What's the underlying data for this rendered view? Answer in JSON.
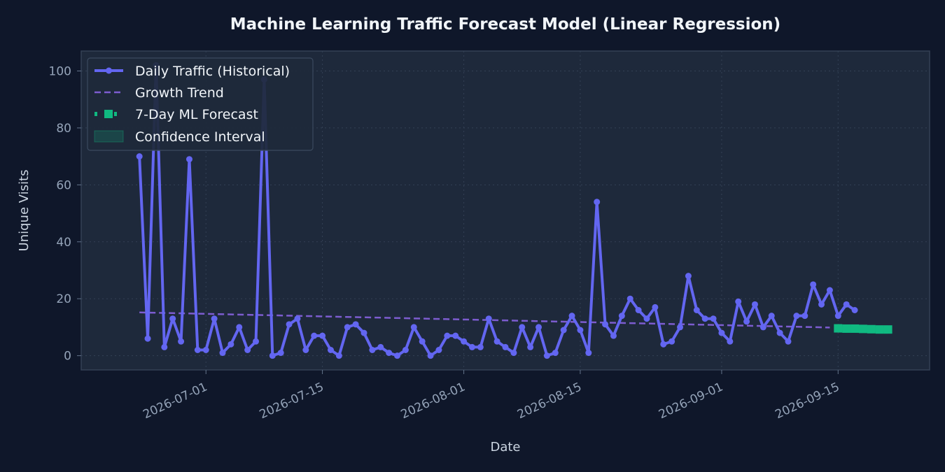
{
  "chart_data": {
    "type": "line",
    "title": "Machine Learning Traffic Forecast Model (Linear Regression)",
    "xlabel": "Date",
    "ylabel": "Unique Visits",
    "ylim": [
      -5,
      107
    ],
    "xlim": [
      "2026-06-16",
      "2026-09-26"
    ],
    "y_ticks": [
      0,
      20,
      40,
      60,
      80,
      100
    ],
    "x_ticks": [
      "2026-07-01",
      "2026-07-15",
      "2026-08-01",
      "2026-08-15",
      "2026-09-01",
      "2026-09-15"
    ],
    "grid": true,
    "legend_position": "top-left",
    "series": [
      {
        "name": "Daily Traffic (Historical)",
        "style": "line-markers",
        "color": "#6366f1",
        "start": "2026-06-23",
        "values": [
          70,
          6,
          102,
          3,
          13,
          5,
          69,
          2,
          2,
          13,
          1,
          4,
          10,
          2,
          5,
          97,
          0,
          1,
          11,
          13,
          2,
          7,
          7,
          2,
          0,
          10,
          11,
          8,
          2,
          3,
          1,
          0,
          2,
          10,
          5,
          0,
          2,
          7,
          7,
          5,
          3,
          3,
          13,
          5,
          3,
          1,
          10,
          3,
          10,
          0,
          1,
          9,
          14,
          9,
          1,
          54,
          11,
          7,
          14,
          20,
          16,
          13,
          17,
          4,
          5,
          10,
          28,
          16,
          13,
          13,
          8,
          5,
          19,
          12,
          18,
          10,
          14,
          8,
          5,
          14,
          14,
          25,
          18,
          23,
          14,
          18,
          16
        ]
      },
      {
        "name": "Growth Trend",
        "style": "dashed",
        "color": "#7c5ccf",
        "start": "2026-06-23",
        "end": "2026-09-14",
        "start_value": 15.2,
        "end_value": 9.9
      },
      {
        "name": "7-Day ML Forecast",
        "style": "dotted-square",
        "color": "#10b981",
        "start": "2026-09-15",
        "values": [
          9.6,
          9.5,
          9.5,
          9.4,
          9.3,
          9.2,
          9.2
        ]
      },
      {
        "name": "Confidence Interval",
        "style": "band",
        "color": "#10b981",
        "start": "2026-09-15",
        "lower": [
          8.1,
          8.0,
          8.0,
          7.9,
          7.8,
          7.7,
          7.7
        ],
        "upper": [
          11.1,
          11.0,
          11.0,
          10.9,
          10.8,
          10.7,
          10.7
        ]
      }
    ]
  },
  "colors": {
    "background": "#0f172a",
    "plot_background": "#1e293b",
    "spine": "#334155",
    "grid": "#334155"
  }
}
